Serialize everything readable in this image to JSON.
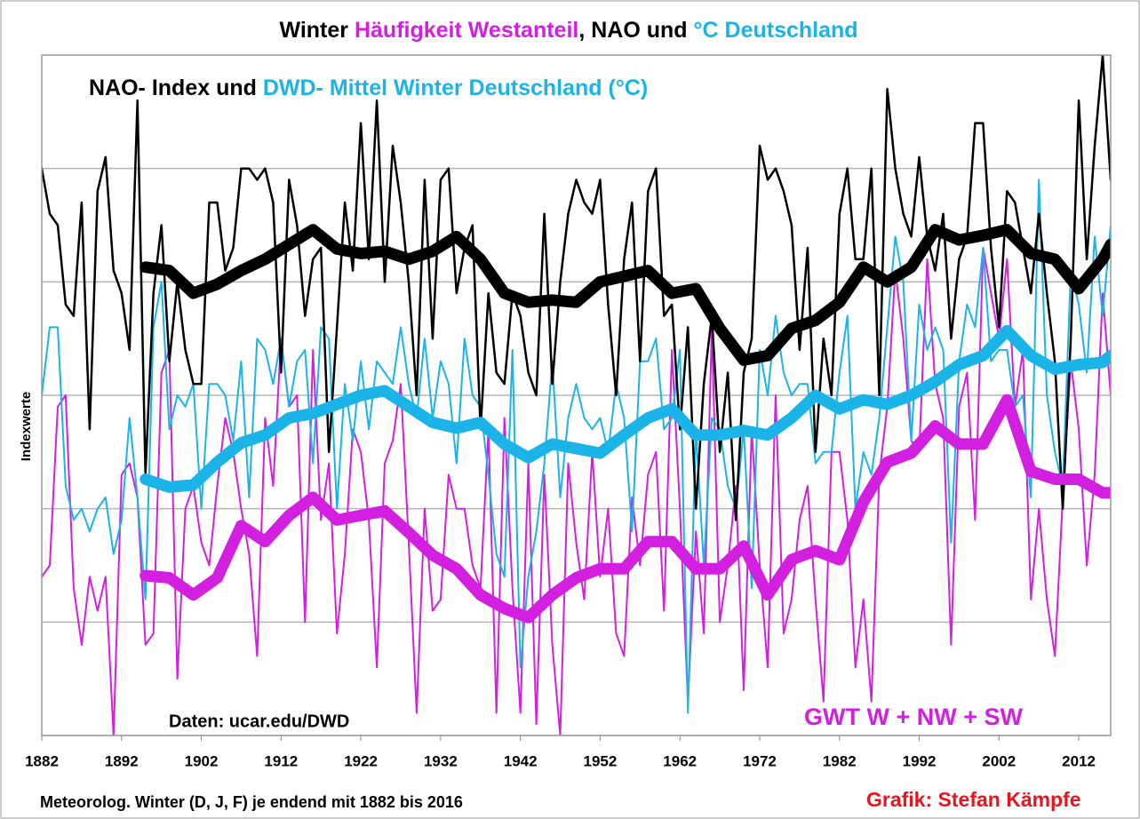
{
  "chart_data": {
    "type": "line",
    "title_parts": [
      {
        "text": "Winter",
        "color": "#000000"
      },
      {
        "text": "Häufigkeit Westanteil",
        "color": "#d21fe0"
      },
      {
        "text": ", NAO und",
        "color": "#000000"
      },
      {
        "text": "°C Deutschland",
        "color": "#1ab4e8"
      }
    ],
    "subtitle_parts": [
      {
        "text": "NAO- Index und",
        "color": "#000000"
      },
      {
        "text": "DWD- Mittel Winter Deutschland (°C)",
        "color": "#1ab4e8"
      }
    ],
    "y_label": "Indexwerte",
    "x_label": "Meteorolog. Winter (D, J, F) je endend mit 1882 bis 2016",
    "annotations": [
      {
        "text": "Daten: ucar.edu/DWD",
        "color": "#000000"
      },
      {
        "text": "GWT W + NW + SW",
        "color": "#d21fe0"
      },
      {
        "text": "Grafik: Stefan Kämpfe",
        "color": "#e8141e"
      }
    ],
    "xlim": [
      1882,
      2016
    ],
    "xticks": [
      1882,
      1892,
      1902,
      1912,
      1922,
      1932,
      1942,
      1952,
      1962,
      1972,
      1982,
      1992,
      2002,
      2012
    ],
    "ylim": [
      0,
      6
    ],
    "yticks": [
      0,
      1,
      2,
      3,
      4,
      5,
      6
    ],
    "grid": true,
    "x": [
      1882,
      1883,
      1884,
      1885,
      1886,
      1887,
      1888,
      1889,
      1890,
      1891,
      1892,
      1893,
      1894,
      1895,
      1896,
      1897,
      1898,
      1899,
      1900,
      1901,
      1902,
      1903,
      1904,
      1905,
      1906,
      1907,
      1908,
      1909,
      1910,
      1911,
      1912,
      1913,
      1914,
      1915,
      1916,
      1917,
      1918,
      1919,
      1920,
      1921,
      1922,
      1923,
      1924,
      1925,
      1926,
      1927,
      1928,
      1929,
      1930,
      1931,
      1932,
      1933,
      1934,
      1935,
      1936,
      1937,
      1938,
      1939,
      1940,
      1941,
      1942,
      1943,
      1944,
      1945,
      1946,
      1947,
      1948,
      1949,
      1950,
      1951,
      1952,
      1953,
      1954,
      1955,
      1956,
      1957,
      1958,
      1959,
      1960,
      1961,
      1962,
      1963,
      1964,
      1965,
      1966,
      1967,
      1968,
      1969,
      1970,
      1971,
      1972,
      1973,
      1974,
      1975,
      1976,
      1977,
      1978,
      1979,
      1980,
      1981,
      1982,
      1983,
      1984,
      1985,
      1986,
      1987,
      1988,
      1989,
      1990,
      1991,
      1992,
      1993,
      1994,
      1995,
      1996,
      1997,
      1998,
      1999,
      2000,
      2001,
      2002,
      2003,
      2004,
      2005,
      2006,
      2007,
      2008,
      2009,
      2010,
      2011,
      2012,
      2013,
      2014,
      2015,
      2016
    ],
    "series": [
      {
        "color": "#d21fe0",
        "line_width": 2,
        "values": [
          1.4,
          1.5,
          2.9,
          3.0,
          1.3,
          0.8,
          1.4,
          1.1,
          1.4,
          0.0,
          2.3,
          2.4,
          2.1,
          0.8,
          0.9,
          3.2,
          3.4,
          0.5,
          2.0,
          2.2,
          1.7,
          1.5,
          2.2,
          2.8,
          2.5,
          2.0,
          1.6,
          0.7,
          2.8,
          2.2,
          3.5,
          2.9,
          3.0,
          1.0,
          3.4,
          1.9,
          2.4,
          0.9,
          1.6,
          2.7,
          2.5,
          1.9,
          0.6,
          2.4,
          2.6,
          3.1,
          1.7,
          0.2,
          2.0,
          1.1,
          1.2,
          2.3,
          2.0,
          2.0,
          1.5,
          1.3,
          2.7,
          0.2,
          2.8,
          1.3,
          0.2,
          2.4,
          0.1,
          2.3,
          0.8,
          0.0,
          2.4,
          1.7,
          1.2,
          2.5,
          1.4,
          2.0,
          0.9,
          0.7,
          2.1,
          1.5,
          2.3,
          2.5,
          1.1,
          3.4,
          2.0,
          0.3,
          1.8,
          0.9,
          3.6,
          1.0,
          1.5,
          2.2,
          0.4,
          2.7,
          1.5,
          0.6,
          3.0,
          0.9,
          1.2,
          1.9,
          2.2,
          1.2,
          0.3,
          2.5,
          2.5,
          1.9,
          0.6,
          1.2,
          0.3,
          2.3,
          2.9,
          4.1,
          3.5,
          2.6,
          2.5,
          4.2,
          3.1,
          2.8,
          0.8,
          2.9,
          3.2,
          1.9,
          4.3,
          3.9,
          3.5,
          4.2,
          2.9,
          3.4,
          1.2,
          2.0,
          1.2,
          0.7,
          2.1,
          3.3,
          2.7,
          1.5,
          2.3,
          3.9,
          3.0
        ]
      },
      {
        "color": "#1ab4e8",
        "line_width": 2,
        "values": [
          3.0,
          3.6,
          3.6,
          2.2,
          1.9,
          2.0,
          1.8,
          2.0,
          2.1,
          1.6,
          1.9,
          2.8,
          2.1,
          1.2,
          3.6,
          4.0,
          2.7,
          3.0,
          2.9,
          3.1,
          2.0,
          3.1,
          3.1,
          3.0,
          2.6,
          3.3,
          2.1,
          3.5,
          3.4,
          3.1,
          3.5,
          2.9,
          3.3,
          3.4,
          2.4,
          3.6,
          3.5,
          2.0,
          3.1,
          2.6,
          3.3,
          2.7,
          3.3,
          3.2,
          3.1,
          3.6,
          3.1,
          2.8,
          3.5,
          2.8,
          3.3,
          3.1,
          2.4,
          3.5,
          3.0,
          2.9,
          2.3,
          1.6,
          1.4,
          3.4,
          0.6,
          1.4,
          1.8,
          2.4,
          3.3,
          2.1,
          2.8,
          3.1,
          2.8,
          2.7,
          2.8,
          2.5,
          3.1,
          2.8,
          1.8,
          3.3,
          3.3,
          3.5,
          2.7,
          2.8,
          3.4,
          0.2,
          2.7,
          1.5,
          2.8,
          2.7,
          2.2,
          2.0,
          2.7,
          1.3,
          3.4,
          3.0,
          3.7,
          3.2,
          3.0,
          3.1,
          3.1,
          2.4,
          2.5,
          2.5,
          3.2,
          3.7,
          2.0,
          2.5,
          2.3,
          2.8,
          3.6,
          4.4,
          4.0,
          2.6,
          3.8,
          3.4,
          3.6,
          3.4,
          1.7,
          3.3,
          3.8,
          3.6,
          4.3,
          3.3,
          3.4,
          3.4,
          2.9,
          3.0,
          2.1,
          4.9,
          3.0,
          2.5,
          2.2,
          4.1,
          3.8,
          3.2,
          4.4,
          3.7,
          4.5
        ]
      },
      {
        "color": "#000000",
        "line_width": 2.5,
        "values": [
          5.0,
          4.6,
          4.5,
          3.8,
          3.7,
          4.7,
          2.7,
          4.8,
          5.1,
          4.1,
          3.9,
          3.4,
          5.6,
          2.3,
          3.9,
          4.5,
          3.3,
          4.0,
          3.4,
          3.1,
          3.1,
          4.7,
          4.7,
          4.1,
          4.3,
          5.0,
          5.0,
          4.9,
          5.0,
          4.7,
          3.2,
          4.9,
          4.5,
          3.7,
          4.2,
          4.3,
          2.5,
          3.6,
          4.7,
          4.1,
          5.4,
          4.2,
          5.6,
          4.0,
          5.2,
          4.7,
          4.0,
          3.0,
          4.9,
          3.5,
          4.9,
          5.0,
          3.9,
          4.3,
          4.5,
          2.7,
          3.9,
          3.2,
          3.1,
          3.9,
          3.7,
          3.2,
          3.0,
          4.6,
          3.1,
          4.0,
          4.6,
          4.9,
          4.7,
          4.6,
          4.9,
          3.8,
          3.0,
          4.2,
          4.7,
          3.3,
          4.8,
          5.0,
          3.7,
          3.8,
          2.7,
          3.6,
          2.0,
          3.1,
          3.7,
          2.5,
          3.2,
          1.9,
          3.2,
          3.5,
          5.2,
          4.9,
          5.0,
          4.8,
          4.5,
          3.4,
          4.3,
          2.5,
          3.5,
          3.0,
          4.6,
          5.0,
          4.2,
          4.2,
          5.0,
          3.0,
          5.7,
          5.0,
          4.6,
          4.4,
          5.1,
          4.4,
          4.1,
          4.6,
          3.5,
          4.2,
          4.4,
          5.4,
          5.4,
          4.3,
          3.6,
          4.8,
          4.7,
          4.3,
          3.9,
          4.6,
          3.9,
          3.3,
          2.0,
          3.5,
          5.6,
          4.2,
          5.2,
          6.0,
          4.9
        ]
      },
      {
        "color": "#d21fe0",
        "line_width": 13,
        "x": [
          1895,
          1898,
          1901,
          1904,
          1907,
          1910,
          1913,
          1916,
          1919,
          1922,
          1925,
          1928,
          1931,
          1934,
          1937,
          1940,
          1943,
          1946,
          1949,
          1952,
          1955,
          1958,
          1961,
          1964,
          1967,
          1970,
          1973,
          1976,
          1979,
          1982,
          1985,
          1988,
          1991,
          1994,
          1997,
          2000,
          2003,
          2006,
          2009,
          2012,
          2015,
          2016
        ],
        "values": [
          1.41,
          1.39,
          1.24,
          1.39,
          1.85,
          1.71,
          1.94,
          2.1,
          1.9,
          1.94,
          1.98,
          1.79,
          1.59,
          1.47,
          1.24,
          1.12,
          1.04,
          1.24,
          1.39,
          1.47,
          1.47,
          1.71,
          1.71,
          1.47,
          1.47,
          1.67,
          1.24,
          1.55,
          1.63,
          1.55,
          2.06,
          2.41,
          2.49,
          2.73,
          2.57,
          2.57,
          2.96,
          2.33,
          2.26,
          2.26,
          2.14,
          2.14
        ]
      },
      {
        "color": "#1ab4e8",
        "line_width": 13,
        "x": [
          1895,
          1898,
          1901,
          1904,
          1907,
          1910,
          1913,
          1916,
          1919,
          1922,
          1925,
          1928,
          1931,
          1934,
          1937,
          1940,
          1943,
          1946,
          1949,
          1952,
          1955,
          1958,
          1961,
          1964,
          1967,
          1970,
          1973,
          1976,
          1979,
          1982,
          1985,
          1988,
          1991,
          1994,
          1997,
          2000,
          2003,
          2006,
          2009,
          2012,
          2015,
          2016
        ],
        "values": [
          2.26,
          2.19,
          2.21,
          2.41,
          2.58,
          2.65,
          2.8,
          2.84,
          2.92,
          3.0,
          3.04,
          2.9,
          2.76,
          2.71,
          2.76,
          2.57,
          2.45,
          2.57,
          2.53,
          2.49,
          2.65,
          2.8,
          2.88,
          2.65,
          2.65,
          2.69,
          2.65,
          2.8,
          3.0,
          2.88,
          2.96,
          2.92,
          3.0,
          3.12,
          3.27,
          3.35,
          3.57,
          3.35,
          3.23,
          3.27,
          3.29,
          3.35
        ]
      },
      {
        "color": "#000000",
        "line_width": 13,
        "x": [
          1895,
          1898,
          1901,
          1904,
          1907,
          1910,
          1913,
          1916,
          1919,
          1922,
          1925,
          1928,
          1931,
          1934,
          1937,
          1940,
          1943,
          1946,
          1949,
          1952,
          1955,
          1958,
          1961,
          1964,
          1967,
          1970,
          1973,
          1976,
          1979,
          1982,
          1985,
          1988,
          1991,
          1994,
          1997,
          2000,
          2003,
          2006,
          2009,
          2012,
          2015,
          2016
        ],
        "values": [
          4.13,
          4.1,
          3.9,
          3.98,
          4.1,
          4.2,
          4.33,
          4.46,
          4.29,
          4.25,
          4.27,
          4.2,
          4.27,
          4.4,
          4.2,
          3.9,
          3.82,
          3.84,
          3.82,
          4.0,
          4.05,
          4.1,
          3.9,
          3.94,
          3.59,
          3.31,
          3.35,
          3.59,
          3.66,
          3.82,
          4.13,
          4.0,
          4.13,
          4.46,
          4.37,
          4.41,
          4.46,
          4.25,
          4.2,
          3.94,
          4.2,
          4.33
        ]
      }
    ]
  }
}
